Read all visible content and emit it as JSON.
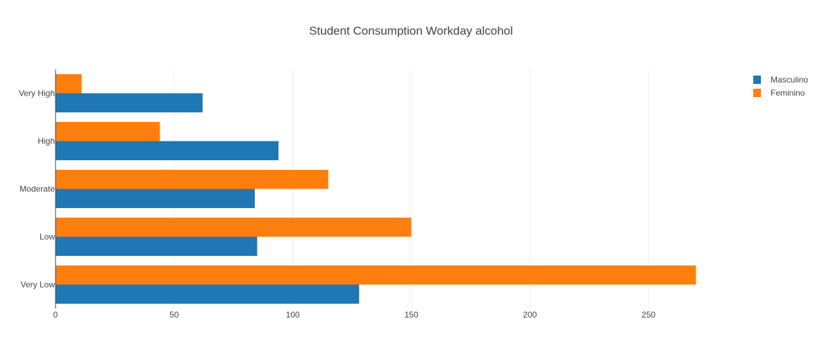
{
  "chart_data": {
    "type": "bar",
    "orientation": "horizontal",
    "title": "Student Consumption Workday alcohol",
    "categories": [
      "Very Low",
      "Low",
      "Moderate",
      "High",
      "Very High"
    ],
    "series": [
      {
        "name": "Masculino",
        "color": "#1f77b4",
        "values": [
          128,
          85,
          84,
          94,
          62
        ]
      },
      {
        "name": "Feminino",
        "color": "#ff7f0e",
        "values": [
          270,
          150,
          115,
          44,
          11
        ]
      }
    ],
    "x_ticks": [
      "0",
      "50",
      "100",
      "150",
      "200",
      "250"
    ],
    "xlim": [
      0,
      300
    ],
    "grid": true,
    "legend_position": "top-right"
  }
}
